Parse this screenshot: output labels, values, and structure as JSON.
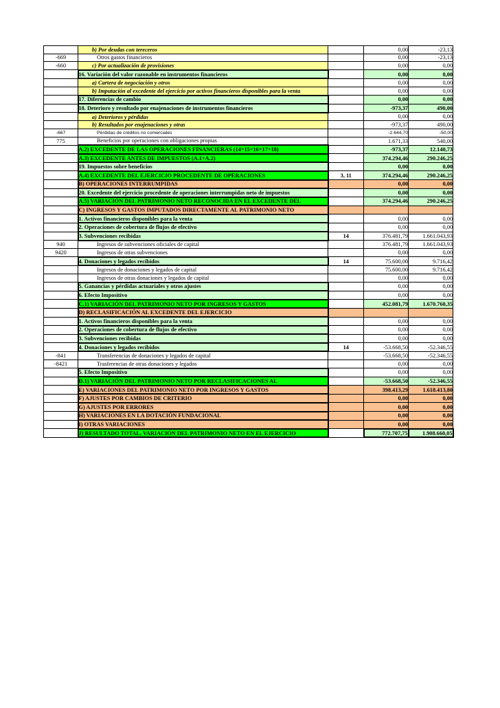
{
  "document": {
    "kind": "financial-statement-table",
    "language": "es",
    "colors": {
      "total_row_bg": "#00FF00",
      "subtotal_row_bg": "#CCFFCC",
      "detail_row_bg": "#FFFF99",
      "section_row_bg": "#FAC090",
      "plain_bg": "#FFFFFF",
      "border": "#000000",
      "text": "#000000"
    }
  },
  "table": {
    "columns": [
      "account_code",
      "description",
      "notes",
      "value_current",
      "value_prior"
    ],
    "rows": [
      {
        "type": "yellow",
        "code": "",
        "label": "b) Por deudas con tereceros",
        "note": "",
        "v1": "0,00",
        "v2": "-23,13",
        "vbg": "white",
        "vbold": false
      },
      {
        "type": "account",
        "code": "-669",
        "label": "Otros gastos financieros",
        "note": "",
        "v1": "0,00",
        "v2": "-23,13",
        "vbg": "white",
        "vbold": false
      },
      {
        "type": "yellow",
        "code": "-660",
        "label": "c) Por actualización de provisiones",
        "note": "",
        "v1": "0,00",
        "v2": "0,00",
        "vbg": "white",
        "vbold": false
      },
      {
        "type": "subtotal",
        "code": "",
        "label": "16. Variación del valor razonable en instrumentos financieros",
        "note": "",
        "v1": "0,00",
        "v2": "0,00",
        "vbg": "green",
        "vbold": true
      },
      {
        "type": "yellow",
        "code": "",
        "label": "a) Cartera de negociación y otros",
        "note": "",
        "v1": "0,00",
        "v2": "0,00",
        "vbg": "white",
        "vbold": false
      },
      {
        "type": "yellow",
        "code": "",
        "label": "b) Imputación al excedente del ejercicio por activos financieros disponibles para la venta",
        "note": "",
        "v1": "0,00",
        "v2": "0,00",
        "vbg": "white",
        "vbold": false
      },
      {
        "type": "subtotal",
        "code": "",
        "label": "17. Diferencias de cambio",
        "note": "",
        "v1": "0,00",
        "v2": "0,00",
        "vbg": "green",
        "vbold": true
      },
      {
        "type": "subtotal",
        "code": "",
        "label": "18. Deterioro y resultado por enajenaciones de instrumentos financieros",
        "note": "",
        "v1": "-973,37",
        "v2": "490,00",
        "vbg": "green",
        "vbold": true
      },
      {
        "type": "yellow",
        "code": "",
        "label": "a) Deterioros y pérdidas",
        "note": "",
        "v1": "0,00",
        "v2": "0,00",
        "vbg": "white",
        "vbold": false
      },
      {
        "type": "yellow",
        "code": "",
        "label": "b) Resultados por enajenaciones y otras",
        "note": "",
        "v1": "-973,37",
        "v2": "490,00",
        "vbg": "white",
        "vbold": false
      },
      {
        "type": "account",
        "small": true,
        "code": "-667",
        "label": "Pérdidas de créditos no comerciales",
        "note": "",
        "v1": "-2.644,70",
        "v2": "-50,00",
        "vbg": "white",
        "vbold": false
      },
      {
        "type": "account",
        "code": "775",
        "label": "Beneficios por operaciones con obligaciones propias",
        "note": "",
        "v1": "1.671,33",
        "v2": "540,00",
        "vbg": "white",
        "vbold": false
      },
      {
        "type": "total",
        "code": "",
        "label": "A.2) EXCEDENTE DE LAS OPERACIONES FINANCIERAS (14+15+16+17+18)",
        "note": "",
        "v1": "-973,37",
        "v2": "12.140,73",
        "vbg": "green",
        "vbold": true
      },
      {
        "type": "total",
        "code": "",
        "label": "A.3)  EXCEDENTE ANTES DE IMPUESTOS (A.1+A.2)",
        "note": "",
        "v1": "374.294,46",
        "v2": "290.246,25",
        "vbg": "green",
        "vbold": true
      },
      {
        "type": "subtotal",
        "code": "",
        "label": "19. Impuestos sobre beneficios",
        "note": "",
        "v1": "0,00",
        "v2": "0,00",
        "vbg": "green",
        "vbold": true
      },
      {
        "type": "total",
        "code": "",
        "label": "A.4) EXCEDENTE DEL EJERCICIO PROCEDENTE DE OPERACIONES",
        "note": "3, 11",
        "v1": "374.294,46",
        "v2": "290.246,25",
        "vbg": "green",
        "vbold": true
      },
      {
        "type": "section",
        "code": "",
        "label": "B) OPERACIONES INTERRUMPIDAS",
        "note": "",
        "v1": "0,00",
        "v2": "0,00",
        "vbg": "orange",
        "vbold": true
      },
      {
        "type": "subtotal",
        "code": "",
        "label": "20. Excedente del ejercicio procedente de operaciones interrumpidas neto de impuestos",
        "note": "",
        "v1": "0,00",
        "v2": "0,00",
        "vbg": "green",
        "vbold": true
      },
      {
        "type": "total",
        "code": "",
        "label": "A.5) VARIACIÓN DEL PATRIMONIO NETO RECONOCIDA EN EL EXCEDENTE DEL",
        "note": "",
        "v1": "374.294,46",
        "v2": "290.246,25",
        "vbg": "green",
        "vbold": true
      },
      {
        "type": "section",
        "code": "",
        "label": "C) INGRESOS Y GASTOS IMPUTADOS DIRECTAMENTE AL PATRIMONIO NETO",
        "note": "",
        "v1": "",
        "v2": "",
        "vbg": "orange",
        "vbold": false
      },
      {
        "type": "subtotal",
        "code": "",
        "label": "1. Activos financieros disponibles para la venta",
        "note": "",
        "v1": "0,00",
        "v2": "0,00",
        "vbg": "white",
        "vbold": false
      },
      {
        "type": "subtotal",
        "code": "",
        "label": "2. Operaciones de cobertura de flujos de efectivo",
        "note": "",
        "v1": "0,00",
        "v2": "0,00",
        "vbg": "white",
        "vbold": false
      },
      {
        "type": "subtotal",
        "code": "",
        "label": "3. Subvenciones recibidas",
        "note": "14",
        "v1": "376.481,79",
        "v2": "1.661.043,93",
        "vbg": "white",
        "vbold": false
      },
      {
        "type": "account",
        "code": "940",
        "label": "Ingresos de subvenciones oficiales de capital",
        "note": "",
        "v1": "376.481,79",
        "v2": "1.661.043,93",
        "vbg": "white",
        "vbold": false
      },
      {
        "type": "account",
        "code": "9420",
        "label": "Ingresos de otras subvenciones",
        "note": "",
        "v1": "0,00",
        "v2": "0,00",
        "vbg": "white",
        "vbold": false
      },
      {
        "type": "subtotal",
        "code": "",
        "label": "4. Donaciones y legados recibidos",
        "note": "14",
        "v1": "75.600,00",
        "v2": "9.716,42",
        "vbg": "white",
        "vbold": false
      },
      {
        "type": "account",
        "code": "",
        "label": "Ingresos de donaciones y legados de capital",
        "note": "",
        "v1": "75.600,00",
        "v2": "9.716,42",
        "vbg": "white",
        "vbold": false
      },
      {
        "type": "account",
        "code": "",
        "label": "Ingresos de otras donaciones y legados de capital",
        "note": "",
        "v1": "0,00",
        "v2": "0,00",
        "vbg": "white",
        "vbold": false
      },
      {
        "type": "subtotal",
        "code": "",
        "label": "5. Ganancias y pérdidas actuariales y otros ajustes",
        "note": "",
        "v1": "0,00",
        "v2": "0,00",
        "vbg": "white",
        "vbold": false
      },
      {
        "type": "subtotal",
        "code": "",
        "label": "6. Efecto Impositivo",
        "note": "",
        "v1": "0,00",
        "v2": "0,00",
        "vbg": "white",
        "vbold": false
      },
      {
        "type": "total",
        "code": "",
        "label": "C.1) VARIACIÓN DEL PATRIMONIO NETO POR INGRESOS Y GASTOS",
        "note": "",
        "v1": "452.081,79",
        "v2": "1.670.760,35",
        "vbg": "green",
        "vbold": true
      },
      {
        "type": "section",
        "code": "",
        "label": "D) RECLASIFICACIÓN AL EXCEDENTE DEL EJERCICIO",
        "note": "",
        "v1": "",
        "v2": "",
        "vbg": "orange",
        "vbold": false
      },
      {
        "type": "subtotal",
        "code": "",
        "label": "1. Activos financieros disponibles para la venta",
        "note": "",
        "v1": "0,00",
        "v2": "0,00",
        "vbg": "white",
        "vbold": false
      },
      {
        "type": "subtotal",
        "code": "",
        "label": "2. Operaciones de cobertura de flujos de efectivo",
        "note": "",
        "v1": "0,00",
        "v2": "0,00",
        "vbg": "white",
        "vbold": false
      },
      {
        "type": "subtotal",
        "code": "",
        "label": "3. Subvenciones recibidas",
        "note": "",
        "v1": "0,00",
        "v2": "0,00",
        "vbg": "white",
        "vbold": false
      },
      {
        "type": "subtotal",
        "code": "",
        "label": "4. Donaciones y legados recibidos",
        "note": "14",
        "v1": "-53.668,50",
        "v2": "-52.346,55",
        "vbg": "white",
        "vbold": false
      },
      {
        "type": "account",
        "code": "-841",
        "label": "Transferencias de donaciones y legados de capital",
        "note": "",
        "v1": "-53.668,50",
        "v2": "-52.346,55",
        "vbg": "white",
        "vbold": false
      },
      {
        "type": "account",
        "code": "-8421",
        "label": "Trasferencias de otras donaciones y legados",
        "note": "",
        "v1": "0,00",
        "v2": "0,00",
        "vbg": "white",
        "vbold": false
      },
      {
        "type": "subtotal",
        "code": "",
        "label": "5. Efecto Impositivo",
        "note": "",
        "v1": "0,00",
        "v2": "0,00",
        "vbg": "white",
        "vbold": false
      },
      {
        "type": "total",
        "code": "",
        "label": "D.1) VARIACIÓN DEL PATRIMONIO NETO POR RECLASIFICACIONES AL",
        "note": "",
        "v1": "-53.668,50",
        "v2": "-52.346,55",
        "vbg": "green",
        "vbold": true
      },
      {
        "type": "section",
        "code": "",
        "label": "E) VARIACIONES DEL PATRIMONIO NETO POR INGRESOS Y GASTOS",
        "note": "",
        "v1": "398.413,29",
        "v2": "1.618.413,80",
        "vbg": "orange",
        "vbold": true
      },
      {
        "type": "section",
        "code": "",
        "label": "F) AJUSTES POR CAMBIOS DE CRITERIO",
        "note": "",
        "v1": "0,00",
        "v2": "0,00",
        "vbg": "orange",
        "vbold": true
      },
      {
        "type": "section",
        "code": "",
        "label": "G) AJUSTES POR ERRORES",
        "note": "",
        "v1": "0,00",
        "v2": "0,00",
        "vbg": "orange",
        "vbold": true
      },
      {
        "type": "section",
        "code": "",
        "label": "H) VARIACIONES EN LA DOTACIÓN FUNDACIONAL",
        "note": "",
        "v1": "0,00",
        "v2": "0,00",
        "vbg": "orange",
        "vbold": true
      },
      {
        "type": "section",
        "code": "",
        "label": "I) OTRAS VARIACIONES",
        "note": "",
        "v1": "0,00",
        "v2": "0,00",
        "vbg": "orange",
        "vbold": true
      },
      {
        "type": "totalJ",
        "code": "",
        "label": "J) RESULTADO TOTAL, VARIACIÓN DEL PATRIMONIO NETO EN EL EJERCICIO",
        "note": "",
        "v1": "772.707,75",
        "v2": "1.908.660,05",
        "vbg": "green",
        "vbold": true
      }
    ]
  }
}
